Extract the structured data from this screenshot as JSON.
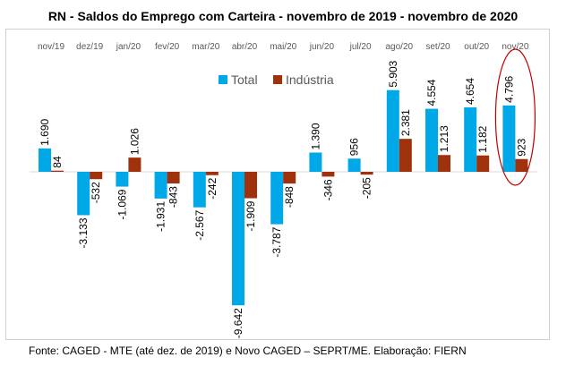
{
  "title": "RN - Saldos do Emprego com Carteira - novembro de 2019 - novembro de 2020",
  "source": "Fonte: CAGED - MTE (até dez. de 2019)  e Novo CAGED – SEPRT/ME. Elaboração: FIERN",
  "colors": {
    "total": "#00A8E8",
    "industria": "#A0310D",
    "highlight": "#C00000"
  },
  "chart_data": {
    "type": "bar",
    "categories": [
      "nov/19",
      "dez/19",
      "jan/20",
      "fev/20",
      "mar/20",
      "abr/20",
      "mai/20",
      "jun/20",
      "jul/20",
      "ago/20",
      "set/20",
      "out/20",
      "nov/20"
    ],
    "series": [
      {
        "name": "Total",
        "values": [
          1690,
          -3133,
          -1069,
          -1931,
          -2567,
          -9642,
          -3787,
          1390,
          956,
          5903,
          4554,
          4654,
          4796
        ],
        "labels": [
          "1.690",
          "-3.133",
          "-1.069",
          "-1.931",
          "-2.567",
          "-9.642",
          "-3.787",
          "1.390",
          "956",
          "5.903",
          "4.554",
          "4.654",
          "4.796"
        ]
      },
      {
        "name": "Indústria",
        "values": [
          84,
          -532,
          1026,
          -843,
          -242,
          -1909,
          -848,
          -346,
          -205,
          2381,
          1213,
          1182,
          923
        ],
        "labels": [
          "84",
          "-532",
          "1.026",
          "-843",
          "-242",
          "-1.909",
          "-848",
          "-346",
          "-205",
          "2.381",
          "1.213",
          "1.182",
          "923"
        ]
      }
    ],
    "legend": "top-center",
    "highlighted_category": "nov/20",
    "grid": false
  }
}
